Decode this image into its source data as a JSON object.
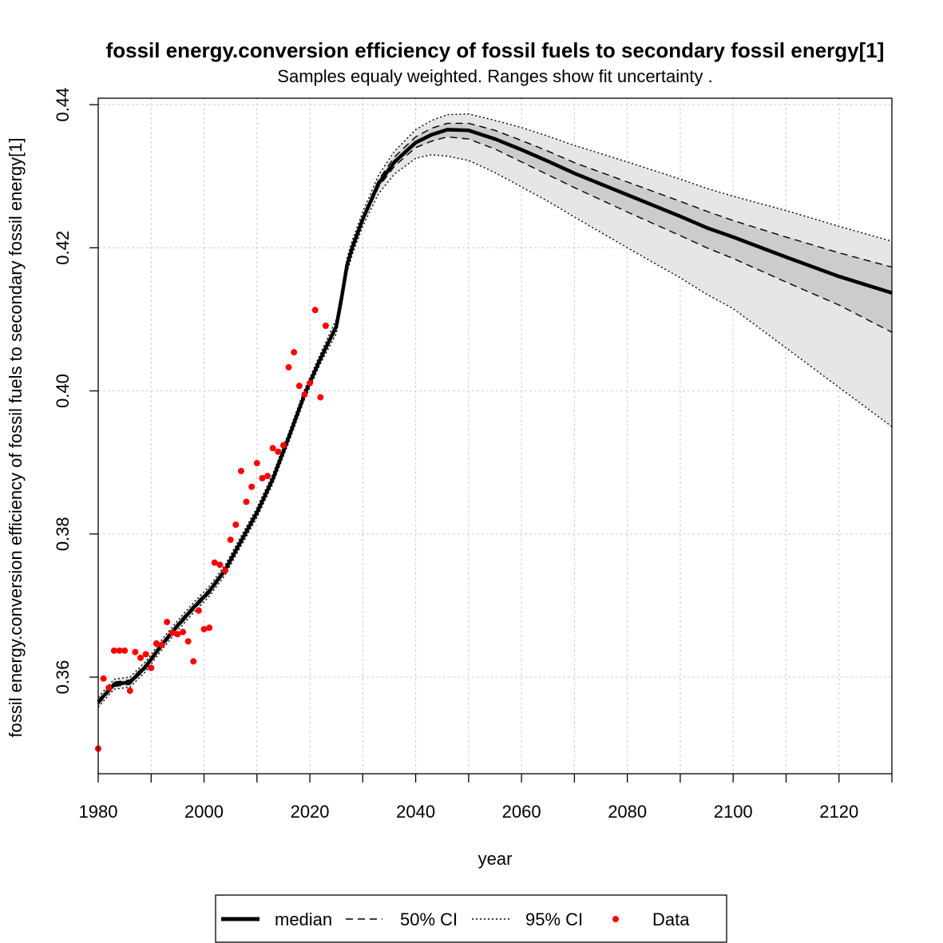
{
  "chart_data": {
    "type": "line",
    "title": "fossil energy.conversion efficiency of fossil fuels to secondary fossil energy[1]",
    "subtitle": "Samples equaly weighted. Ranges show  fit uncertainty .",
    "xlabel": "year",
    "ylabel": "fossil energy.conversion efficiency of fossil fuels to secondary fossil energy[1]",
    "xlim": [
      1980,
      2130
    ],
    "ylim": [
      0.3465,
      0.4409
    ],
    "x_ticks": [
      1980,
      2000,
      2020,
      2040,
      2060,
      2080,
      2100,
      2120
    ],
    "x_minor_ticks": [
      1990,
      2010,
      2030,
      2050,
      2070,
      2090,
      2110,
      2130
    ],
    "y_ticks": [
      0.36,
      0.38,
      0.4,
      0.42,
      0.44
    ],
    "y_tick_labels": [
      "0.36",
      "0.38",
      "0.40",
      "0.42",
      "0.44"
    ],
    "grid": true,
    "legend_position": "bottom",
    "colors": {
      "median": "#000000",
      "ci50_fill": "#cccccc",
      "ci95_fill": "#e6e6e6",
      "data": "#ff0000",
      "grid": "#cccccc"
    },
    "x": [
      1980,
      1983,
      1986,
      1989,
      1992,
      1995,
      1998,
      2001,
      2004,
      2007,
      2010,
      2013,
      2016,
      2019,
      2022,
      2025,
      2026,
      2027,
      2028,
      2030,
      2033,
      2036,
      2040,
      2043,
      2046,
      2050,
      2055,
      2060,
      2065,
      2070,
      2080,
      2090,
      2095,
      2100,
      2110,
      2120,
      2130
    ],
    "series": [
      {
        "name": "median",
        "values": [
          0.3565,
          0.359,
          0.3593,
          0.3615,
          0.3645,
          0.3672,
          0.3697,
          0.372,
          0.375,
          0.379,
          0.383,
          0.3877,
          0.3935,
          0.3995,
          0.4045,
          0.409,
          0.413,
          0.4175,
          0.42,
          0.424,
          0.429,
          0.432,
          0.4347,
          0.4358,
          0.4365,
          0.4364,
          0.4352,
          0.4337,
          0.4321,
          0.4304,
          0.4274,
          0.4244,
          0.4228,
          0.4215,
          0.4187,
          0.416,
          0.4137
        ]
      },
      {
        "name": "50% CI upper",
        "values": [
          0.3568,
          0.3593,
          0.3596,
          0.3618,
          0.3648,
          0.3675,
          0.37,
          0.3723,
          0.3753,
          0.3793,
          0.3833,
          0.388,
          0.3938,
          0.3998,
          0.4048,
          0.4094,
          0.4134,
          0.4179,
          0.4204,
          0.4244,
          0.4295,
          0.4327,
          0.4355,
          0.4367,
          0.4374,
          0.4374,
          0.4364,
          0.435,
          0.4335,
          0.4319,
          0.4292,
          0.4265,
          0.4251,
          0.4238,
          0.4215,
          0.4193,
          0.4173
        ]
      },
      {
        "name": "50% CI lower",
        "values": [
          0.3562,
          0.3587,
          0.359,
          0.3612,
          0.3642,
          0.3669,
          0.3694,
          0.3717,
          0.3747,
          0.3787,
          0.3827,
          0.3874,
          0.3932,
          0.3992,
          0.4042,
          0.4086,
          0.4126,
          0.4171,
          0.4196,
          0.4236,
          0.4285,
          0.4314,
          0.434,
          0.4349,
          0.4355,
          0.4352,
          0.4338,
          0.432,
          0.4302,
          0.4284,
          0.425,
          0.4217,
          0.42,
          0.4185,
          0.4152,
          0.412,
          0.4082
        ]
      },
      {
        "name": "95% CI upper",
        "values": [
          0.3572,
          0.3597,
          0.36,
          0.3622,
          0.3652,
          0.3679,
          0.3704,
          0.3727,
          0.3757,
          0.3797,
          0.3837,
          0.3884,
          0.3942,
          0.4002,
          0.4052,
          0.41,
          0.414,
          0.4185,
          0.421,
          0.425,
          0.4302,
          0.4335,
          0.4365,
          0.4378,
          0.4386,
          0.4387,
          0.4378,
          0.4368,
          0.4356,
          0.4343,
          0.432,
          0.4296,
          0.4283,
          0.4272,
          0.4252,
          0.423,
          0.4209
        ]
      },
      {
        "name": "95% CI lower",
        "values": [
          0.3558,
          0.3583,
          0.3586,
          0.3608,
          0.3638,
          0.3665,
          0.369,
          0.3713,
          0.3743,
          0.3783,
          0.3823,
          0.387,
          0.3928,
          0.3988,
          0.4038,
          0.408,
          0.412,
          0.4165,
          0.419,
          0.423,
          0.4276,
          0.4303,
          0.4325,
          0.433,
          0.4328,
          0.4322,
          0.4305,
          0.4285,
          0.4265,
          0.4243,
          0.42,
          0.4158,
          0.4135,
          0.4115,
          0.406,
          0.4005,
          0.395
        ]
      }
    ],
    "data_points": [
      {
        "x": 1980,
        "y": 0.35
      },
      {
        "x": 1981,
        "y": 0.3598
      },
      {
        "x": 1982,
        "y": 0.3585
      },
      {
        "x": 1983,
        "y": 0.3637
      },
      {
        "x": 1984,
        "y": 0.3637
      },
      {
        "x": 1985,
        "y": 0.3637
      },
      {
        "x": 1986,
        "y": 0.3581
      },
      {
        "x": 1987,
        "y": 0.3635
      },
      {
        "x": 1988,
        "y": 0.3627
      },
      {
        "x": 1989,
        "y": 0.3632
      },
      {
        "x": 1990,
        "y": 0.3613
      },
      {
        "x": 1991,
        "y": 0.3647
      },
      {
        "x": 1992,
        "y": 0.3645
      },
      {
        "x": 1993,
        "y": 0.3677
      },
      {
        "x": 1994,
        "y": 0.3662
      },
      {
        "x": 1995,
        "y": 0.366
      },
      {
        "x": 1996,
        "y": 0.3663
      },
      {
        "x": 1997,
        "y": 0.365
      },
      {
        "x": 1998,
        "y": 0.3622
      },
      {
        "x": 1999,
        "y": 0.3693
      },
      {
        "x": 2000,
        "y": 0.3667
      },
      {
        "x": 2001,
        "y": 0.3669
      },
      {
        "x": 2002,
        "y": 0.376
      },
      {
        "x": 2003,
        "y": 0.3757
      },
      {
        "x": 2004,
        "y": 0.3749
      },
      {
        "x": 2005,
        "y": 0.3792
      },
      {
        "x": 2006,
        "y": 0.3813
      },
      {
        "x": 2007,
        "y": 0.3888
      },
      {
        "x": 2008,
        "y": 0.3845
      },
      {
        "x": 2009,
        "y": 0.3866
      },
      {
        "x": 2010,
        "y": 0.3899
      },
      {
        "x": 2011,
        "y": 0.3878
      },
      {
        "x": 2012,
        "y": 0.3881
      },
      {
        "x": 2013,
        "y": 0.392
      },
      {
        "x": 2014,
        "y": 0.3915
      },
      {
        "x": 2015,
        "y": 0.3924
      },
      {
        "x": 2016,
        "y": 0.4033
      },
      {
        "x": 2017,
        "y": 0.4054
      },
      {
        "x": 2018,
        "y": 0.4007
      },
      {
        "x": 2019,
        "y": 0.3995
      },
      {
        "x": 2020,
        "y": 0.4011
      },
      {
        "x": 2021,
        "y": 0.4113
      },
      {
        "x": 2022,
        "y": 0.3991
      },
      {
        "x": 2023,
        "y": 0.4091
      }
    ],
    "legend": {
      "items": [
        {
          "label": "median",
          "style": "solid-thick"
        },
        {
          "label": "50% CI",
          "style": "dashed"
        },
        {
          "label": "95% CI",
          "style": "dotted"
        },
        {
          "label": "Data",
          "style": "point"
        }
      ]
    }
  }
}
